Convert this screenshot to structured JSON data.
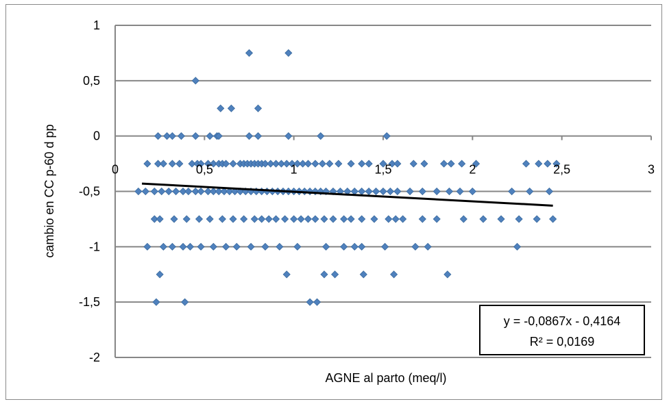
{
  "chart_data": {
    "type": "scatter",
    "title": "",
    "xlabel": "AGNE al parto (meq/l)",
    "ylabel": "cambio en CC p-60 d pp",
    "xlim": [
      0,
      3
    ],
    "ylim": [
      -2,
      1
    ],
    "x_ticks": [
      "0",
      "0,5",
      "1",
      "1,5",
      "2",
      "2,5",
      "3"
    ],
    "y_ticks": [
      "1",
      "0,5",
      "0",
      "-0,5",
      "-1",
      "-1,5",
      "-2"
    ],
    "grid": "horizontal",
    "legend": "none",
    "marker_color": "#4F81BD",
    "trendline_color": "#000000",
    "trendline": {
      "slope": -0.0867,
      "intercept": -0.4164,
      "x_range": [
        0.15,
        2.45
      ]
    },
    "equation_box": {
      "equation": "y = -0,0867x - 0,4164",
      "r2": "R² = 0,0169"
    },
    "points": [
      [
        0.75,
        0.75
      ],
      [
        0.97,
        0.75
      ],
      [
        0.45,
        0.5
      ],
      [
        0.59,
        0.25
      ],
      [
        0.65,
        0.25
      ],
      [
        0.8,
        0.25
      ],
      [
        0.24,
        0.0
      ],
      [
        0.29,
        0.0
      ],
      [
        0.32,
        0.0
      ],
      [
        0.37,
        0.0
      ],
      [
        0.45,
        0.0
      ],
      [
        0.53,
        0.0
      ],
      [
        0.57,
        0.0
      ],
      [
        0.58,
        0.0
      ],
      [
        0.75,
        0.0
      ],
      [
        0.8,
        0.0
      ],
      [
        0.97,
        0.0
      ],
      [
        1.15,
        0.0
      ],
      [
        1.52,
        0.0
      ],
      [
        0.18,
        -0.25
      ],
      [
        0.24,
        -0.25
      ],
      [
        0.27,
        -0.25
      ],
      [
        0.32,
        -0.25
      ],
      [
        0.36,
        -0.25
      ],
      [
        0.43,
        -0.25
      ],
      [
        0.46,
        -0.25
      ],
      [
        0.48,
        -0.25
      ],
      [
        0.52,
        -0.25
      ],
      [
        0.55,
        -0.25
      ],
      [
        0.58,
        -0.25
      ],
      [
        0.6,
        -0.25
      ],
      [
        0.62,
        -0.25
      ],
      [
        0.66,
        -0.25
      ],
      [
        0.7,
        -0.25
      ],
      [
        0.72,
        -0.25
      ],
      [
        0.74,
        -0.25
      ],
      [
        0.76,
        -0.25
      ],
      [
        0.78,
        -0.25
      ],
      [
        0.8,
        -0.25
      ],
      [
        0.82,
        -0.25
      ],
      [
        0.84,
        -0.25
      ],
      [
        0.87,
        -0.25
      ],
      [
        0.9,
        -0.25
      ],
      [
        0.93,
        -0.25
      ],
      [
        0.96,
        -0.25
      ],
      [
        0.99,
        -0.25
      ],
      [
        1.02,
        -0.25
      ],
      [
        1.05,
        -0.25
      ],
      [
        1.08,
        -0.25
      ],
      [
        1.12,
        -0.25
      ],
      [
        1.16,
        -0.25
      ],
      [
        1.2,
        -0.25
      ],
      [
        1.25,
        -0.25
      ],
      [
        1.32,
        -0.25
      ],
      [
        1.38,
        -0.25
      ],
      [
        1.42,
        -0.25
      ],
      [
        1.5,
        -0.25
      ],
      [
        1.55,
        -0.25
      ],
      [
        1.58,
        -0.25
      ],
      [
        1.67,
        -0.25
      ],
      [
        1.73,
        -0.25
      ],
      [
        1.84,
        -0.25
      ],
      [
        1.88,
        -0.25
      ],
      [
        1.94,
        -0.25
      ],
      [
        2.02,
        -0.25
      ],
      [
        2.3,
        -0.25
      ],
      [
        2.37,
        -0.25
      ],
      [
        2.42,
        -0.25
      ],
      [
        2.47,
        -0.25
      ],
      [
        0.13,
        -0.5
      ],
      [
        0.17,
        -0.5
      ],
      [
        0.22,
        -0.5
      ],
      [
        0.26,
        -0.5
      ],
      [
        0.3,
        -0.5
      ],
      [
        0.34,
        -0.5
      ],
      [
        0.38,
        -0.5
      ],
      [
        0.41,
        -0.5
      ],
      [
        0.45,
        -0.5
      ],
      [
        0.48,
        -0.5
      ],
      [
        0.52,
        -0.5
      ],
      [
        0.55,
        -0.5
      ],
      [
        0.58,
        -0.5
      ],
      [
        0.61,
        -0.5
      ],
      [
        0.64,
        -0.5
      ],
      [
        0.67,
        -0.5
      ],
      [
        0.7,
        -0.5
      ],
      [
        0.73,
        -0.5
      ],
      [
        0.76,
        -0.5
      ],
      [
        0.79,
        -0.5
      ],
      [
        0.82,
        -0.5
      ],
      [
        0.85,
        -0.5
      ],
      [
        0.88,
        -0.5
      ],
      [
        0.91,
        -0.5
      ],
      [
        0.94,
        -0.5
      ],
      [
        0.97,
        -0.5
      ],
      [
        1.0,
        -0.5
      ],
      [
        1.03,
        -0.5
      ],
      [
        1.06,
        -0.5
      ],
      [
        1.09,
        -0.5
      ],
      [
        1.12,
        -0.5
      ],
      [
        1.15,
        -0.5
      ],
      [
        1.18,
        -0.5
      ],
      [
        1.22,
        -0.5
      ],
      [
        1.26,
        -0.5
      ],
      [
        1.3,
        -0.5
      ],
      [
        1.34,
        -0.5
      ],
      [
        1.38,
        -0.5
      ],
      [
        1.42,
        -0.5
      ],
      [
        1.46,
        -0.5
      ],
      [
        1.5,
        -0.5
      ],
      [
        1.54,
        -0.5
      ],
      [
        1.58,
        -0.5
      ],
      [
        1.65,
        -0.5
      ],
      [
        1.72,
        -0.5
      ],
      [
        1.8,
        -0.5
      ],
      [
        1.87,
        -0.5
      ],
      [
        1.93,
        -0.5
      ],
      [
        2.0,
        -0.5
      ],
      [
        2.22,
        -0.5
      ],
      [
        2.32,
        -0.5
      ],
      [
        2.43,
        -0.5
      ],
      [
        0.22,
        -0.75
      ],
      [
        0.25,
        -0.75
      ],
      [
        0.33,
        -0.75
      ],
      [
        0.4,
        -0.75
      ],
      [
        0.47,
        -0.75
      ],
      [
        0.53,
        -0.75
      ],
      [
        0.6,
        -0.75
      ],
      [
        0.66,
        -0.75
      ],
      [
        0.72,
        -0.75
      ],
      [
        0.78,
        -0.75
      ],
      [
        0.82,
        -0.75
      ],
      [
        0.86,
        -0.75
      ],
      [
        0.9,
        -0.75
      ],
      [
        0.95,
        -0.75
      ],
      [
        1.0,
        -0.75
      ],
      [
        1.04,
        -0.75
      ],
      [
        1.08,
        -0.75
      ],
      [
        1.12,
        -0.75
      ],
      [
        1.17,
        -0.75
      ],
      [
        1.22,
        -0.75
      ],
      [
        1.28,
        -0.75
      ],
      [
        1.32,
        -0.75
      ],
      [
        1.38,
        -0.75
      ],
      [
        1.45,
        -0.75
      ],
      [
        1.53,
        -0.75
      ],
      [
        1.57,
        -0.75
      ],
      [
        1.61,
        -0.75
      ],
      [
        1.72,
        -0.75
      ],
      [
        1.8,
        -0.75
      ],
      [
        1.95,
        -0.75
      ],
      [
        2.06,
        -0.75
      ],
      [
        2.16,
        -0.75
      ],
      [
        2.26,
        -0.75
      ],
      [
        2.36,
        -0.75
      ],
      [
        2.45,
        -0.75
      ],
      [
        0.18,
        -1.0
      ],
      [
        0.27,
        -1.0
      ],
      [
        0.32,
        -1.0
      ],
      [
        0.38,
        -1.0
      ],
      [
        0.42,
        -1.0
      ],
      [
        0.48,
        -1.0
      ],
      [
        0.55,
        -1.0
      ],
      [
        0.62,
        -1.0
      ],
      [
        0.68,
        -1.0
      ],
      [
        0.76,
        -1.0
      ],
      [
        0.84,
        -1.0
      ],
      [
        0.92,
        -1.0
      ],
      [
        1.02,
        -1.0
      ],
      [
        1.18,
        -1.0
      ],
      [
        1.28,
        -1.0
      ],
      [
        1.34,
        -1.0
      ],
      [
        1.38,
        -1.0
      ],
      [
        1.51,
        -1.0
      ],
      [
        1.68,
        -1.0
      ],
      [
        1.75,
        -1.0
      ],
      [
        2.25,
        -1.0
      ],
      [
        0.25,
        -1.25
      ],
      [
        0.96,
        -1.25
      ],
      [
        1.17,
        -1.25
      ],
      [
        1.23,
        -1.25
      ],
      [
        1.39,
        -1.25
      ],
      [
        1.56,
        -1.25
      ],
      [
        1.86,
        -1.25
      ],
      [
        0.23,
        -1.5
      ],
      [
        0.39,
        -1.5
      ],
      [
        1.09,
        -1.5
      ],
      [
        1.13,
        -1.5
      ]
    ]
  }
}
